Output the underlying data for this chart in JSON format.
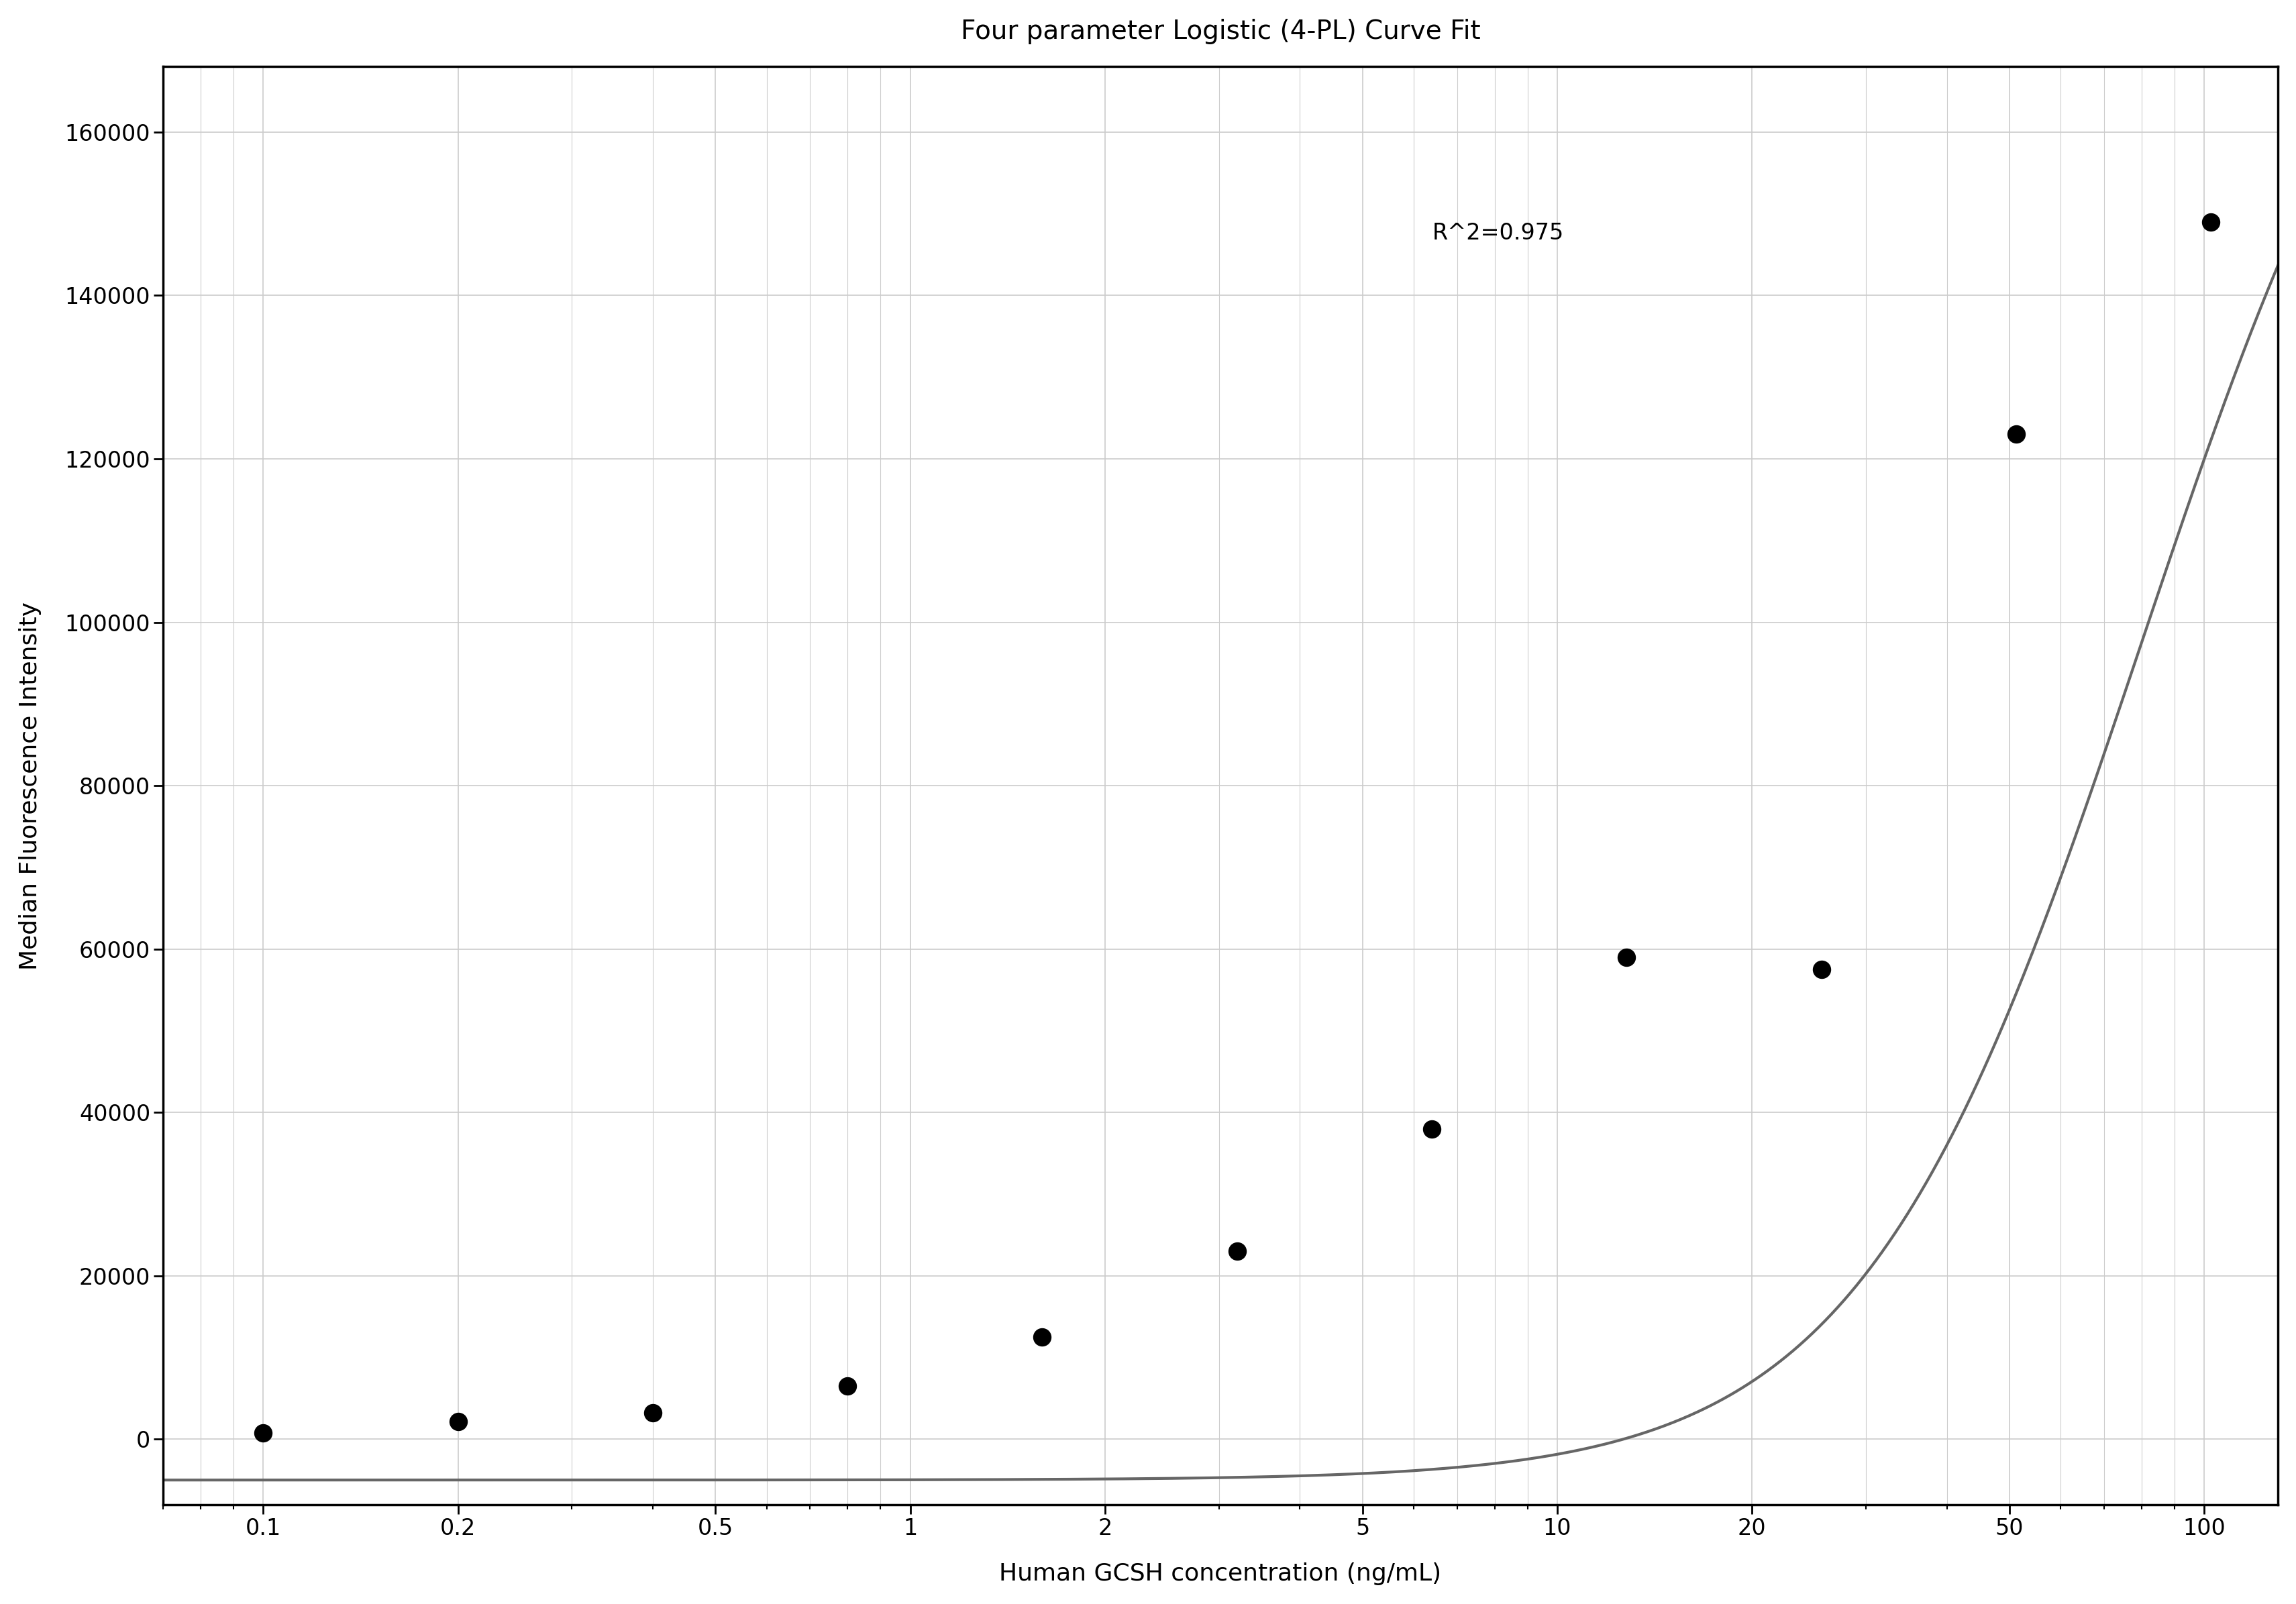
{
  "title": "Four parameter Logistic (4-PL) Curve Fit",
  "xlabel": "Human GCSH concentration (ng/mL)",
  "ylabel": "Median Fluorescence Intensity",
  "r_squared": "R^2=0.975",
  "scatter_x": [
    0.1,
    0.2,
    0.4,
    0.8,
    1.6,
    3.2,
    6.4,
    12.8,
    25.6,
    51.2,
    102.4
  ],
  "scatter_y": [
    800,
    2200,
    3200,
    6500,
    12500,
    23000,
    38000,
    59000,
    57500,
    123000,
    149000
  ],
  "xmin": 0.07,
  "xmax": 130,
  "ymin": -8000,
  "ymax": 168000,
  "yticks": [
    0,
    20000,
    40000,
    60000,
    80000,
    100000,
    120000,
    140000,
    160000
  ],
  "xtick_labels": [
    "0.1",
    "0.2",
    "0.5",
    "1",
    "2",
    "5",
    "10",
    "20",
    "50",
    "100"
  ],
  "xtick_positions": [
    0.1,
    0.2,
    0.5,
    1,
    2,
    5,
    10,
    20,
    50,
    100
  ],
  "background_color": "#ffffff",
  "grid_color": "#cccccc",
  "curve_color": "#666666",
  "scatter_color": "#000000",
  "text_color": "#000000",
  "spine_color": "#000000",
  "title_fontsize": 28,
  "axis_label_fontsize": 26,
  "tick_fontsize": 24,
  "annotation_fontsize": 24
}
